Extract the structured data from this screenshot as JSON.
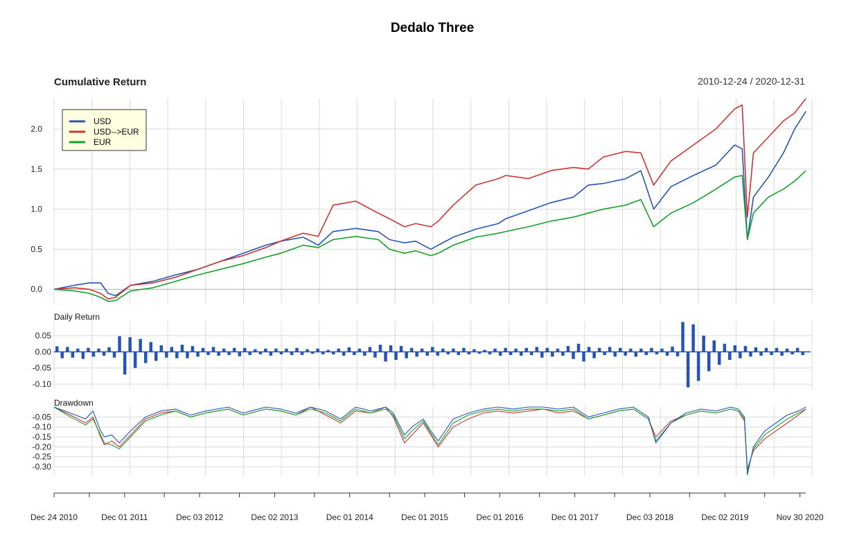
{
  "title": "Dedalo Three",
  "colors": {
    "usd": "#2454b4",
    "usd_eur": "#cc3333",
    "eur": "#11a02a",
    "grid": "#d9d9d9",
    "zero": "#aaaaaa",
    "legend_bg": "#ffffe0"
  },
  "chart_data": [
    {
      "type": "line",
      "panel": "cumulative",
      "title": "Cumulative Return",
      "date_range": "2010-12-24 / 2020-12-31",
      "ylim": [
        -0.18,
        2.38
      ],
      "yticks": [
        "0.0",
        "0.5",
        "1.0",
        "1.5",
        "2.0"
      ],
      "ytick_values": [
        0,
        0.5,
        1.0,
        1.5,
        2.0
      ],
      "legend": {
        "position": "top-left",
        "entries": [
          "USD",
          "USD-->EUR",
          "EUR"
        ]
      },
      "x": [
        2010.98,
        2011.25,
        2011.45,
        2011.6,
        2011.7,
        2011.8,
        2012.0,
        2012.3,
        2012.6,
        2012.9,
        2013.2,
        2013.5,
        2013.8,
        2014.0,
        2014.3,
        2014.5,
        2014.7,
        2015.0,
        2015.3,
        2015.45,
        2015.65,
        2015.8,
        2016.0,
        2016.1,
        2016.3,
        2016.6,
        2016.9,
        2017.0,
        2017.3,
        2017.6,
        2017.9,
        2018.1,
        2018.3,
        2018.6,
        2018.8,
        2018.97,
        2019.2,
        2019.5,
        2019.8,
        2020.05,
        2020.15,
        2020.22,
        2020.3,
        2020.5,
        2020.7,
        2020.85,
        2021.0
      ],
      "series": [
        {
          "name": "USD",
          "values": [
            0.0,
            0.05,
            0.08,
            0.08,
            -0.05,
            -0.08,
            0.05,
            0.1,
            0.18,
            0.25,
            0.35,
            0.45,
            0.55,
            0.6,
            0.65,
            0.55,
            0.72,
            0.76,
            0.72,
            0.62,
            0.58,
            0.6,
            0.5,
            0.55,
            0.65,
            0.75,
            0.82,
            0.88,
            0.98,
            1.08,
            1.15,
            1.3,
            1.32,
            1.38,
            1.48,
            1.0,
            1.28,
            1.42,
            1.55,
            1.8,
            1.75,
            0.62,
            1.15,
            1.4,
            1.7,
            2.0,
            2.22
          ]
        },
        {
          "name": "USD-->EUR",
          "values": [
            0.0,
            0.02,
            0.0,
            -0.05,
            -0.12,
            -0.1,
            0.05,
            0.08,
            0.15,
            0.25,
            0.35,
            0.42,
            0.52,
            0.6,
            0.7,
            0.66,
            1.05,
            1.1,
            0.95,
            0.88,
            0.78,
            0.82,
            0.78,
            0.85,
            1.05,
            1.3,
            1.38,
            1.42,
            1.38,
            1.48,
            1.52,
            1.5,
            1.65,
            1.72,
            1.7,
            1.3,
            1.6,
            1.8,
            2.0,
            2.25,
            2.3,
            0.9,
            1.7,
            1.9,
            2.1,
            2.2,
            2.38
          ]
        },
        {
          "name": "EUR",
          "values": [
            0.0,
            -0.02,
            -0.05,
            -0.1,
            -0.15,
            -0.14,
            -0.02,
            0.02,
            0.1,
            0.18,
            0.25,
            0.32,
            0.4,
            0.45,
            0.55,
            0.52,
            0.62,
            0.66,
            0.62,
            0.5,
            0.45,
            0.48,
            0.42,
            0.45,
            0.55,
            0.65,
            0.7,
            0.72,
            0.78,
            0.85,
            0.9,
            0.95,
            1.0,
            1.05,
            1.12,
            0.78,
            0.95,
            1.08,
            1.25,
            1.4,
            1.42,
            0.62,
            0.95,
            1.15,
            1.25,
            1.35,
            1.48
          ]
        }
      ]
    },
    {
      "type": "bar",
      "panel": "daily",
      "title": "Daily Return",
      "ylim": [
        -0.115,
        0.095
      ],
      "yticks": [
        "0.05",
        "0.00",
        "-0.05",
        "-0.10"
      ],
      "ytick_values": [
        0.05,
        0.0,
        -0.05,
        -0.1
      ],
      "series": [
        {
          "name": "USD",
          "values": [
            0.017,
            -0.02,
            0.015,
            -0.018,
            0.01,
            -0.022,
            0.012,
            -0.015,
            0.01,
            -0.012,
            0.014,
            -0.018,
            0.048,
            -0.07,
            0.045,
            -0.05,
            0.04,
            -0.035,
            0.03,
            -0.028,
            0.02,
            -0.018,
            0.015,
            -0.02,
            0.022,
            -0.02,
            0.018,
            -0.015,
            0.012,
            -0.01,
            0.015,
            -0.012,
            0.01,
            -0.01,
            0.012,
            -0.014,
            0.012,
            -0.01,
            0.008,
            -0.008,
            0.01,
            -0.012,
            0.01,
            -0.008,
            0.01,
            -0.01,
            0.012,
            -0.01,
            0.008,
            -0.006,
            0.01,
            -0.008,
            0.006,
            -0.008,
            0.01,
            -0.012,
            0.014,
            -0.01,
            0.01,
            -0.012,
            0.015,
            -0.018,
            0.022,
            -0.03,
            0.02,
            -0.025,
            0.018,
            -0.02,
            0.012,
            -0.015,
            0.01,
            -0.012,
            0.015,
            -0.012,
            0.01,
            -0.008,
            0.01,
            -0.01,
            0.012,
            -0.008,
            0.008,
            -0.006,
            0.006,
            -0.008,
            0.01,
            -0.012,
            0.012,
            -0.01,
            0.01,
            -0.012,
            0.012,
            -0.01,
            0.015,
            -0.018,
            0.012,
            -0.015,
            0.01,
            -0.012,
            0.018,
            -0.022,
            0.025,
            -0.03,
            0.015,
            -0.02,
            0.012,
            -0.01,
            0.015,
            -0.015,
            0.012,
            -0.012,
            0.01,
            -0.015,
            0.01,
            -0.01,
            0.012,
            -0.008,
            0.01,
            -0.012,
            0.016,
            -0.014,
            0.092,
            -0.11,
            0.085,
            -0.09,
            0.05,
            -0.06,
            0.035,
            -0.04,
            0.025,
            -0.025,
            0.02,
            -0.02,
            0.018,
            -0.015,
            0.014,
            -0.012,
            0.012,
            -0.01,
            0.012,
            -0.012,
            0.01,
            -0.008,
            0.012,
            -0.01
          ]
        }
      ]
    },
    {
      "type": "line",
      "panel": "drawdown",
      "title": "Drawdown",
      "ylim": [
        -0.345,
        0.0
      ],
      "yticks": [
        "-0.05",
        "-0.10",
        "-0.15",
        "-0.20",
        "-0.25",
        "-0.30"
      ],
      "ytick_values": [
        -0.05,
        -0.1,
        -0.15,
        -0.2,
        -0.25,
        -0.3
      ],
      "x": [
        2010.98,
        2011.2,
        2011.4,
        2011.5,
        2011.6,
        2011.65,
        2011.75,
        2011.85,
        2012.0,
        2012.2,
        2012.4,
        2012.6,
        2012.8,
        2013.0,
        2013.3,
        2013.5,
        2013.6,
        2013.8,
        2014.0,
        2014.2,
        2014.4,
        2014.6,
        2014.8,
        2015.0,
        2015.2,
        2015.4,
        2015.5,
        2015.65,
        2015.75,
        2015.9,
        2016.0,
        2016.1,
        2016.3,
        2016.5,
        2016.7,
        2016.9,
        2017.1,
        2017.3,
        2017.5,
        2017.7,
        2017.9,
        2018.1,
        2018.3,
        2018.5,
        2018.7,
        2018.9,
        2019.0,
        2019.2,
        2019.4,
        2019.6,
        2019.8,
        2020.0,
        2020.1,
        2020.18,
        2020.22,
        2020.3,
        2020.45,
        2020.6,
        2020.75,
        2020.9,
        2021.0
      ],
      "series": [
        {
          "name": "USD",
          "values": [
            0,
            -0.03,
            -0.06,
            -0.02,
            -0.12,
            -0.15,
            -0.14,
            -0.18,
            -0.12,
            -0.05,
            -0.02,
            -0.01,
            -0.04,
            -0.02,
            0,
            -0.03,
            -0.02,
            0,
            -0.01,
            -0.03,
            0,
            -0.02,
            -0.06,
            0,
            -0.02,
            0,
            -0.03,
            -0.14,
            -0.1,
            -0.06,
            -0.12,
            -0.17,
            -0.06,
            -0.03,
            -0.01,
            0,
            -0.01,
            0,
            0,
            -0.01,
            0,
            -0.05,
            -0.03,
            -0.01,
            0,
            -0.05,
            -0.18,
            -0.08,
            -0.03,
            -0.01,
            -0.02,
            0,
            -0.01,
            -0.05,
            -0.34,
            -0.2,
            -0.12,
            -0.08,
            -0.04,
            -0.02,
            0
          ]
        },
        {
          "name": "USD-->EUR",
          "values": [
            0,
            -0.04,
            -0.08,
            -0.05,
            -0.15,
            -0.19,
            -0.17,
            -0.2,
            -0.14,
            -0.06,
            -0.03,
            -0.02,
            -0.05,
            -0.03,
            -0.01,
            -0.04,
            -0.03,
            -0.01,
            -0.02,
            -0.04,
            0,
            -0.04,
            -0.08,
            -0.02,
            -0.03,
            0,
            -0.05,
            -0.18,
            -0.14,
            -0.08,
            -0.14,
            -0.2,
            -0.1,
            -0.06,
            -0.03,
            -0.02,
            -0.03,
            -0.02,
            -0.01,
            -0.03,
            -0.02,
            -0.06,
            -0.04,
            -0.02,
            -0.01,
            -0.06,
            -0.15,
            -0.07,
            -0.04,
            -0.02,
            -0.03,
            -0.01,
            -0.02,
            -0.07,
            -0.31,
            -0.22,
            -0.16,
            -0.12,
            -0.08,
            -0.04,
            -0.01
          ]
        },
        {
          "name": "EUR",
          "values": [
            0,
            -0.05,
            -0.09,
            -0.06,
            -0.14,
            -0.18,
            -0.19,
            -0.21,
            -0.15,
            -0.07,
            -0.04,
            -0.02,
            -0.05,
            -0.03,
            -0.01,
            -0.04,
            -0.03,
            -0.01,
            -0.02,
            -0.04,
            -0.01,
            -0.03,
            -0.07,
            -0.01,
            -0.03,
            -0.01,
            -0.04,
            -0.16,
            -0.12,
            -0.07,
            -0.13,
            -0.19,
            -0.08,
            -0.04,
            -0.02,
            -0.01,
            -0.02,
            -0.01,
            -0.01,
            -0.02,
            -0.01,
            -0.06,
            -0.04,
            -0.02,
            -0.01,
            -0.06,
            -0.17,
            -0.08,
            -0.04,
            -0.02,
            -0.03,
            -0.01,
            -0.02,
            -0.06,
            -0.32,
            -0.21,
            -0.14,
            -0.1,
            -0.06,
            -0.03,
            -0.01
          ]
        }
      ]
    }
  ],
  "x_axis": {
    "tick_labels": [
      "Dec 24 2010",
      "Dec 01 2011",
      "Dec 03 2012",
      "Dec 02 2013",
      "Dec 01 2014",
      "Dec 01 2015",
      "Dec 01 2016",
      "Dec 01 2017",
      "Dec 03 2018",
      "Dec 02 2019",
      "Nov 30 2020"
    ],
    "tick_values": [
      2010.98,
      2011.92,
      2012.92,
      2013.92,
      2014.92,
      2015.92,
      2016.92,
      2017.92,
      2018.92,
      2019.92,
      2020.92
    ],
    "x_range": [
      2010.98,
      2021.08
    ]
  }
}
